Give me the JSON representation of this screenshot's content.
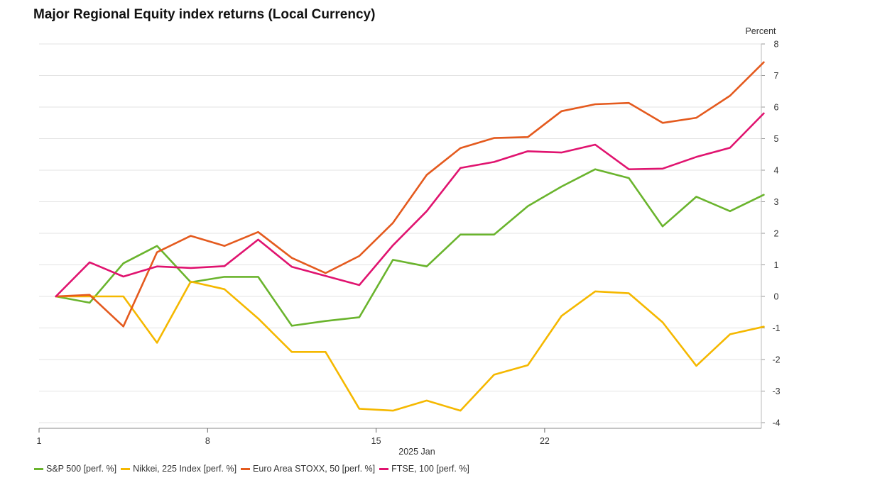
{
  "chart_data": {
    "type": "line",
    "title": "Major Regional Equity index returns (Local Currency)",
    "ylabel": "Percent",
    "xlabel": "2025 Jan",
    "ylim": [
      -4,
      8
    ],
    "xlim": [
      1,
      31
    ],
    "yticks": [
      -4,
      -3,
      -2,
      -1,
      0,
      1,
      2,
      3,
      4,
      5,
      6,
      7,
      8
    ],
    "xticks": [
      1,
      8,
      15,
      22
    ],
    "grid": true,
    "legend_position": "bottom",
    "x": [
      1.7,
      3.1,
      4.5,
      5.9,
      7.3,
      8.7,
      10.1,
      11.5,
      12.9,
      14.3,
      15.7,
      17.1,
      18.5,
      19.9,
      21.3,
      22.7,
      24.1,
      25.5,
      26.9,
      28.3,
      29.7,
      31.1
    ],
    "series": [
      {
        "name": "S&P 500 [perf. %]",
        "color": "#6ab42d",
        "values": [
          0,
          -0.2,
          1.05,
          1.6,
          0.45,
          0.62,
          0.62,
          -0.93,
          -0.78,
          -0.66,
          1.16,
          0.95,
          1.96,
          1.96,
          2.86,
          3.48,
          4.03,
          3.75,
          2.22,
          3.16,
          2.7,
          3.22
        ]
      },
      {
        "name": "Nikkei, 225 Index [perf. %]",
        "color": "#f5b800",
        "values": [
          0,
          0,
          0,
          -1.47,
          0.47,
          0.23,
          -0.7,
          -1.76,
          -1.76,
          -3.56,
          -3.62,
          -3.3,
          -3.62,
          -2.48,
          -2.18,
          -0.62,
          0.16,
          0.1,
          -0.82,
          -2.2,
          -1.2,
          -0.96
        ]
      },
      {
        "name": "Euro Area STOXX, 50 [perf. %]",
        "color": "#e45a1e",
        "values": [
          0,
          0.05,
          -0.95,
          1.4,
          1.92,
          1.6,
          2.04,
          1.22,
          0.74,
          1.28,
          2.33,
          3.85,
          4.7,
          5.02,
          5.05,
          5.87,
          6.09,
          6.13,
          5.5,
          5.66,
          6.36,
          7.42
        ]
      },
      {
        "name": "FTSE, 100 [perf. %]",
        "color": "#e0136f",
        "values": [
          0,
          1.08,
          0.63,
          0.95,
          0.9,
          0.96,
          1.8,
          0.94,
          0.65,
          0.36,
          1.62,
          2.7,
          4.07,
          4.26,
          4.6,
          4.56,
          4.81,
          4.03,
          4.05,
          4.42,
          4.71,
          5.8
        ]
      }
    ]
  }
}
